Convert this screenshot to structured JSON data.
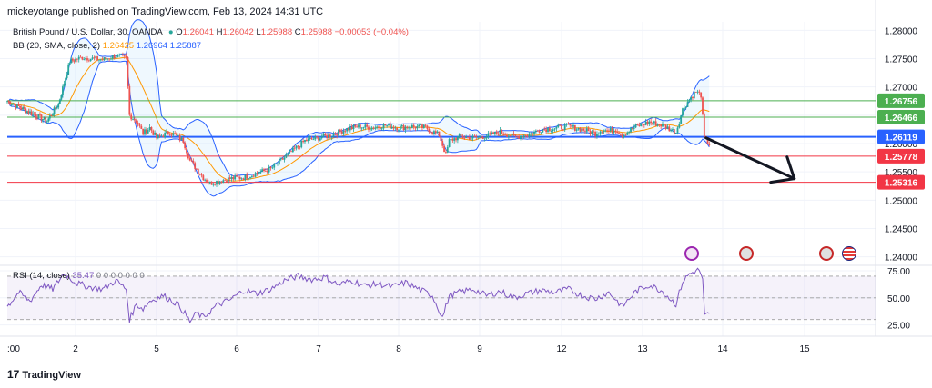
{
  "header": {
    "published": "mickeyotange published on TradingView.com, Feb 13, 2024 14:31 UTC"
  },
  "legend": {
    "symbol": "British Pound / U.S. Dollar, 30, OANDA",
    "o_label": "O",
    "o_value": "1.26041",
    "h_label": "H",
    "h_value": "1.26042",
    "l_label": "L",
    "l_value": "1.25988",
    "c_label": "C",
    "c_value": "1.25988",
    "change": "−0.00053 (−0.04%)",
    "bb_label": "BB (20, SMA, close, 2)",
    "bb_basis": "1.26425",
    "bb_upper": "1.26964",
    "bb_lower": "1.25887",
    "rsi_label": "RSI (14, close)",
    "rsi_value": "35.47",
    "rsi_zeros": "0 0 0 0 0 0 0"
  },
  "brand": {
    "name": "TradingView"
  },
  "colors": {
    "up": "#26a69a",
    "down": "#ef5350",
    "bb_basis": "#ff9800",
    "bb_band": "#2962ff",
    "rsi": "#7e57c2",
    "green_level": "#4caf50",
    "red_level": "#f23645",
    "blue_level": "#2962ff"
  },
  "chart_data": [
    {
      "type": "candlestick",
      "symbol": "GBP/USD",
      "x_ticks": [
        ":00",
        "2",
        "5",
        "6",
        "7",
        "8",
        "9",
        "12",
        "13",
        "14",
        "15"
      ],
      "ylim": [
        1.2385,
        1.2815
      ],
      "y_ticks": [
        1.24,
        1.245,
        1.25,
        1.255,
        1.26,
        1.265,
        1.27,
        1.275,
        1.28
      ],
      "y_tick_labels": [
        "1.24000",
        "1.24500",
        "1.25000",
        "1.25500",
        "1.26000",
        "1.26500",
        "1.27000",
        "1.27500",
        "1.28000"
      ],
      "levels": [
        {
          "value": 1.26756,
          "label": "1.26756",
          "color": "green"
        },
        {
          "value": 1.26466,
          "label": "1.26466",
          "color": "green"
        },
        {
          "value": 1.26119,
          "label": "1.26119",
          "color": "blue"
        },
        {
          "value": 1.25778,
          "label": "1.25778",
          "color": "red"
        },
        {
          "value": 1.25316,
          "label": "1.25316",
          "color": "red"
        }
      ],
      "close_path": [
        [
          0,
          1.2675
        ],
        [
          4,
          1.2655
        ],
        [
          7,
          1.264
        ],
        [
          9,
          1.267
        ],
        [
          11,
          1.2745
        ],
        [
          13,
          1.2752
        ],
        [
          16,
          1.2748
        ],
        [
          18,
          1.2755
        ],
        [
          19.5,
          1.275
        ],
        [
          20,
          1.265
        ],
        [
          21,
          1.264
        ],
        [
          22,
          1.2618
        ],
        [
          23,
          1.2628
        ],
        [
          24,
          1.261
        ],
        [
          26,
          1.262
        ],
        [
          28,
          1.2605
        ],
        [
          29,
          1.257
        ],
        [
          30,
          1.2555
        ],
        [
          31,
          1.254
        ],
        [
          32,
          1.253
        ],
        [
          33,
          1.2533
        ],
        [
          35,
          1.2538
        ],
        [
          37,
          1.254
        ],
        [
          39,
          1.2548
        ],
        [
          41,
          1.2555
        ],
        [
          44,
          1.2585
        ],
        [
          46,
          1.2605
        ],
        [
          48,
          1.261
        ],
        [
          50,
          1.2615
        ],
        [
          52,
          1.2625
        ],
        [
          54,
          1.263
        ],
        [
          56,
          1.2628
        ],
        [
          58,
          1.2632
        ],
        [
          60,
          1.2628
        ],
        [
          62,
          1.263
        ],
        [
          64,
          1.2628
        ],
        [
          66,
          1.2615
        ],
        [
          67,
          1.258
        ],
        [
          67.5,
          1.2605
        ],
        [
          69,
          1.2612
        ],
        [
          71,
          1.261
        ],
        [
          73,
          1.2613
        ],
        [
          75,
          1.262
        ],
        [
          77,
          1.2612
        ],
        [
          79,
          1.2615
        ],
        [
          81,
          1.2625
        ],
        [
          83,
          1.2627
        ],
        [
          85,
          1.263
        ],
        [
          87,
          1.2625
        ],
        [
          89,
          1.2618
        ],
        [
          90,
          1.2625
        ],
        [
          91,
          1.2622
        ],
        [
          92,
          1.2625
        ],
        [
          93,
          1.2615
        ],
        [
          95,
          1.263
        ],
        [
          97,
          1.2638
        ],
        [
          99,
          1.2632
        ],
        [
          101,
          1.262
        ],
        [
          102,
          1.266
        ],
        [
          103,
          1.2678
        ],
        [
          104,
          1.2692
        ],
        [
          104.8,
          1.2685
        ],
        [
          105.2,
          1.261
        ],
        [
          106,
          1.2599
        ]
      ],
      "projection": {
        "from": [
          105.5,
          1.261
        ],
        "to": [
          118.5,
          1.2538
        ]
      },
      "indicators": {
        "bb_period": 20,
        "bb_stddev": 2
      }
    },
    {
      "type": "line",
      "name": "RSI (14, close)",
      "x_ticks": [
        ":00",
        "2",
        "5",
        "6",
        "7",
        "8",
        "9",
        "12",
        "13",
        "14",
        "15"
      ],
      "ylim": [
        18,
        80
      ],
      "y_ticks": [
        25,
        50,
        75
      ],
      "y_tick_labels": [
        "25.00",
        "50.00",
        "75.00"
      ],
      "band": [
        30,
        70
      ],
      "values": [
        [
          0,
          42
        ],
        [
          2,
          55
        ],
        [
          4,
          47
        ],
        [
          6,
          62
        ],
        [
          8,
          58
        ],
        [
          10,
          73
        ],
        [
          12,
          64
        ],
        [
          14,
          60
        ],
        [
          16,
          58
        ],
        [
          18,
          66
        ],
        [
          19.5,
          58
        ],
        [
          20,
          30
        ],
        [
          21,
          44
        ],
        [
          22,
          40
        ],
        [
          23,
          47
        ],
        [
          25,
          52
        ],
        [
          27,
          45
        ],
        [
          28,
          38
        ],
        [
          29,
          28
        ],
        [
          30,
          36
        ],
        [
          31,
          32
        ],
        [
          33,
          43
        ],
        [
          35,
          48
        ],
        [
          37,
          57
        ],
        [
          39,
          54
        ],
        [
          41,
          58
        ],
        [
          43,
          66
        ],
        [
          45,
          70
        ],
        [
          47,
          67
        ],
        [
          49,
          69
        ],
        [
          51,
          62
        ],
        [
          53,
          66
        ],
        [
          55,
          61
        ],
        [
          57,
          63
        ],
        [
          59,
          60
        ],
        [
          61,
          64
        ],
        [
          63,
          58
        ],
        [
          65,
          52
        ],
        [
          66.5,
          32
        ],
        [
          67.5,
          52
        ],
        [
          69,
          55
        ],
        [
          71,
          58
        ],
        [
          73,
          52
        ],
        [
          75,
          56
        ],
        [
          77,
          50
        ],
        [
          79,
          54
        ],
        [
          81,
          57
        ],
        [
          83,
          55
        ],
        [
          85,
          58
        ],
        [
          87,
          52
        ],
        [
          89,
          49
        ],
        [
          91,
          55
        ],
        [
          93,
          42
        ],
        [
          95,
          56
        ],
        [
          97,
          62
        ],
        [
          99,
          56
        ],
        [
          101,
          44
        ],
        [
          102,
          65
        ],
        [
          103,
          72
        ],
        [
          104.5,
          76
        ],
        [
          105,
          66
        ],
        [
          105.3,
          33
        ],
        [
          106,
          35.5
        ]
      ]
    }
  ]
}
